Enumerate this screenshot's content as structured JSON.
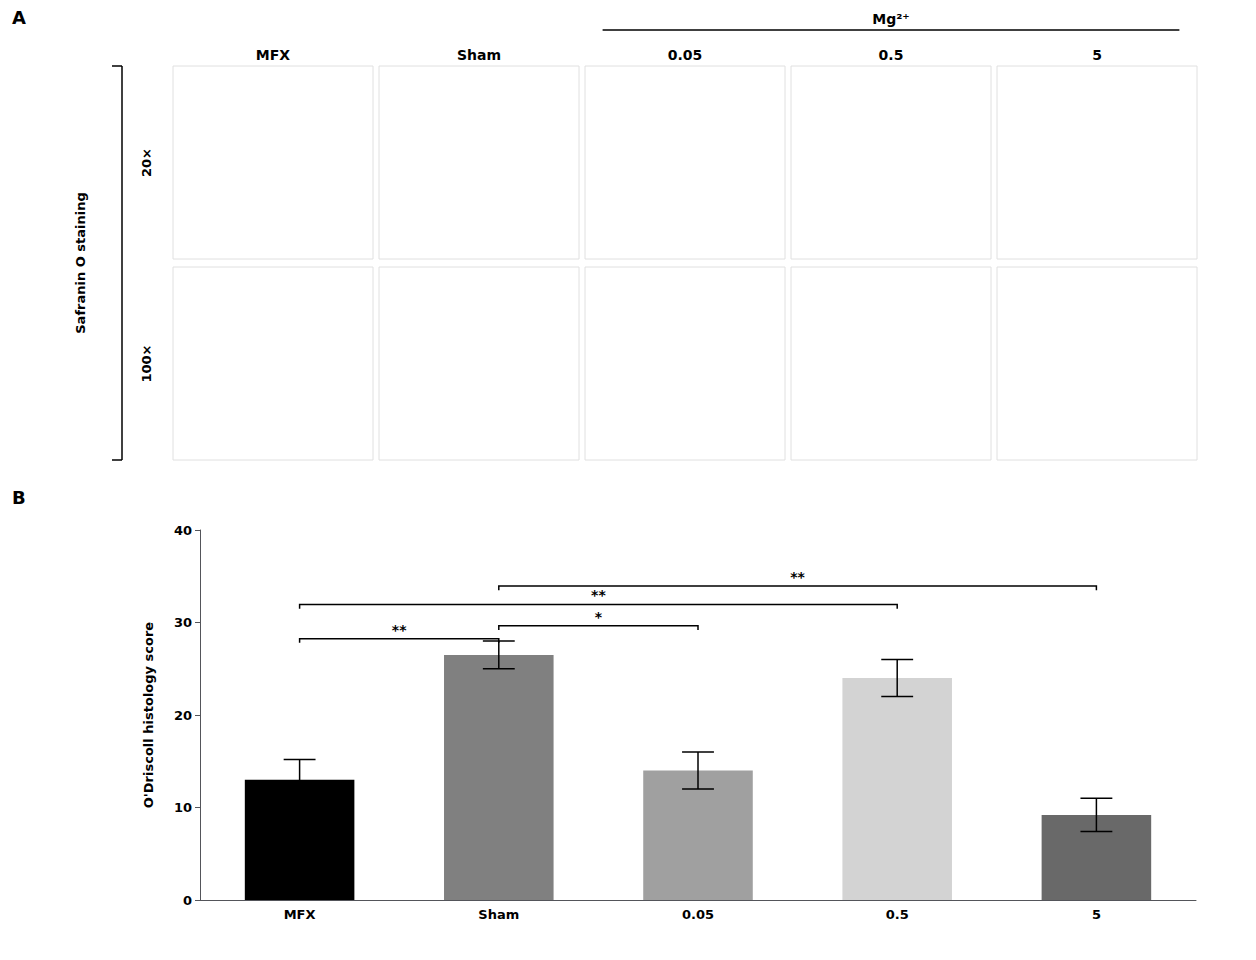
{
  "chart_data": {
    "type": "bar",
    "categories": [
      "MFX",
      "Sham",
      "0.05",
      "0.5",
      "5"
    ],
    "values": [
      13.0,
      26.5,
      14.0,
      24.0,
      9.2
    ],
    "errors": [
      2.2,
      1.5,
      2.0,
      2.0,
      1.8
    ],
    "colors": [
      "#000000",
      "#808080",
      "#a0a0a0",
      "#d3d3d3",
      "#696969"
    ],
    "ylabel": "O'Driscoll histology score",
    "ylim": [
      0,
      40
    ],
    "yticks": [
      0,
      10,
      20,
      30,
      40
    ],
    "grid": false,
    "brackets": [
      {
        "from": "MFX",
        "to": "Sham",
        "y": 27.8,
        "label": "**"
      },
      {
        "from": "Sham",
        "to": "0.05",
        "y": 29.2,
        "label": "*"
      },
      {
        "from": "MFX",
        "to": "0.5",
        "y": 31.5,
        "label": "**"
      },
      {
        "from": "Sham",
        "to": "5",
        "y": 33.5,
        "label": "**"
      }
    ],
    "annotations": {
      "panel_labels": [
        "A",
        "B"
      ],
      "column_labels": [
        "MFX",
        "Sham",
        "0.05",
        "0.5",
        "5"
      ],
      "group_label": {
        "text": "Mg²⁺",
        "columns": [
          "0.05",
          "0.5",
          "5"
        ]
      },
      "row_title": "Safranin O staining",
      "row_labels": [
        "20×",
        "100×"
      ]
    }
  }
}
